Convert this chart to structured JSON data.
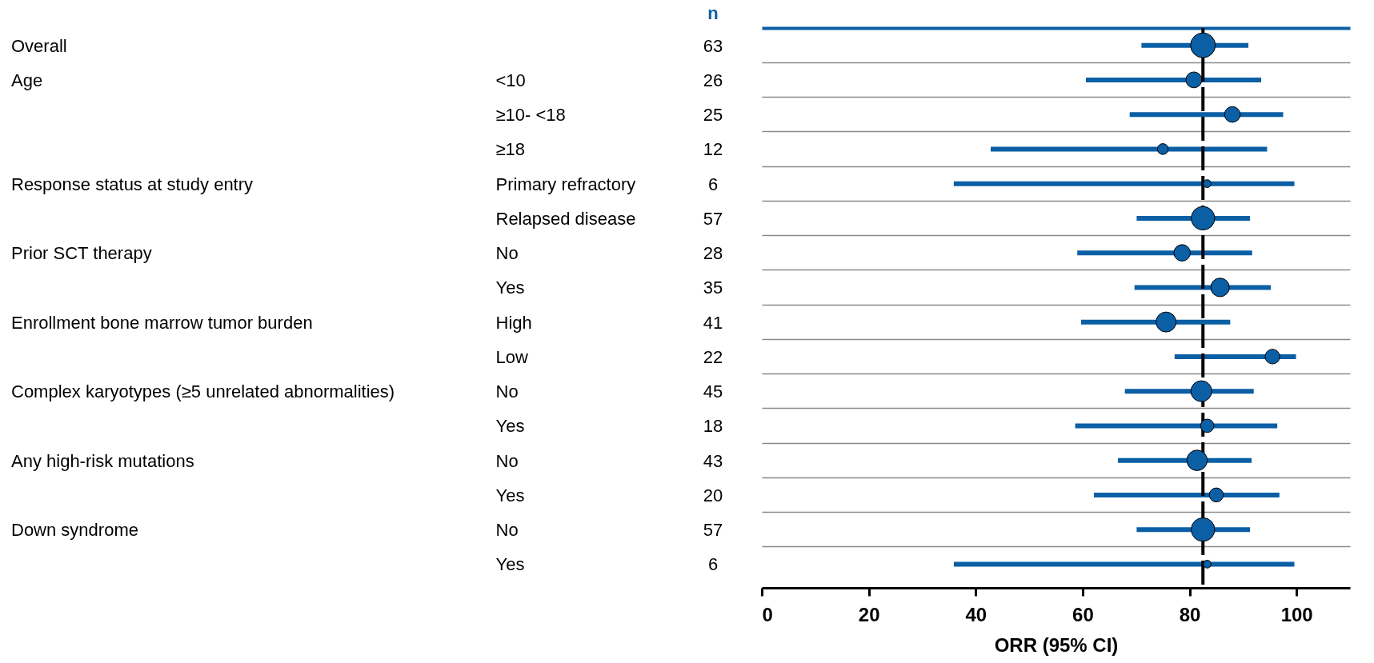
{
  "chart_data": {
    "type": "bubble",
    "orientation": "horizontal",
    "xlabel": "ORR (95% CI)",
    "y2label": "n",
    "y_categories": [
      "Overall",
      "Age",
      null,
      null,
      "Response status at study entry",
      null,
      "Prior SCT therapy",
      null,
      "Enrollment bone marrow tumor burden",
      null,
      "Complex karyotypes (≥5 unrelated abnormalities)",
      null,
      "Any high-risk mutations",
      null,
      "Down syndrome",
      null
    ],
    "categories": [
      null,
      "<10",
      "≥10- <18",
      "≥18",
      "Primary refractory",
      "Relapsed disease",
      "No",
      "Yes",
      "High",
      "Low",
      "No",
      "Yes",
      "No",
      "Yes",
      "No",
      "Yes"
    ],
    "y2_categories": [
      "63",
      "26",
      "25",
      "12",
      "6",
      "57",
      "28",
      "35",
      "41",
      "22",
      "45",
      "18",
      "43",
      "20",
      "57",
      "6"
    ],
    "colors": [
      "#0b5fa5",
      "#0b5fa5",
      "#0b5fa5",
      "#0b5fa5",
      "#0b5fa5",
      "#0b5fa5",
      "#0b5fa5",
      "#0b5fa5",
      "#0b5fa5",
      "#0b5fa5",
      "#0b5fa5",
      "#0b5fa5",
      "#0b5fa5",
      "#0b5fa5",
      "#0b5fa5",
      "#0b5fa5"
    ],
    "values": [
      82.5,
      80.8,
      88.0,
      75.0,
      83.3,
      82.5,
      78.6,
      85.7,
      75.6,
      95.5,
      82.2,
      83.3,
      81.4,
      85.0,
      82.5,
      83.3
    ],
    "errors": [
      [
        71.0,
        91.0
      ],
      [
        60.6,
        93.4
      ],
      [
        68.8,
        97.5
      ],
      [
        42.8,
        94.5
      ],
      [
        35.9,
        99.6
      ],
      [
        70.1,
        91.3
      ],
      [
        59.0,
        91.7
      ],
      [
        69.7,
        95.2
      ],
      [
        59.7,
        87.6
      ],
      [
        77.2,
        99.9
      ],
      [
        67.9,
        92.0
      ],
      [
        58.6,
        96.4
      ],
      [
        66.6,
        91.6
      ],
      [
        62.1,
        96.8
      ],
      [
        70.1,
        91.3
      ],
      [
        35.9,
        99.6
      ]
    ],
    "sizes": [
      1,
      0.41,
      0.4,
      0.19,
      0.1,
      0.9,
      0.44,
      0.56,
      0.65,
      0.35,
      0.71,
      0.29,
      0.68,
      0.32,
      0.9,
      0.1
    ],
    "xlim": [
      0,
      110
    ],
    "xticks": [
      0,
      20,
      40,
      60,
      80,
      100
    ],
    "ref_lines": [
      {
        "axis": "x",
        "value": 82.5,
        "color": "#000000",
        "line_style": "dashed"
      }
    ],
    "grid": "y",
    "marker": "circle"
  }
}
